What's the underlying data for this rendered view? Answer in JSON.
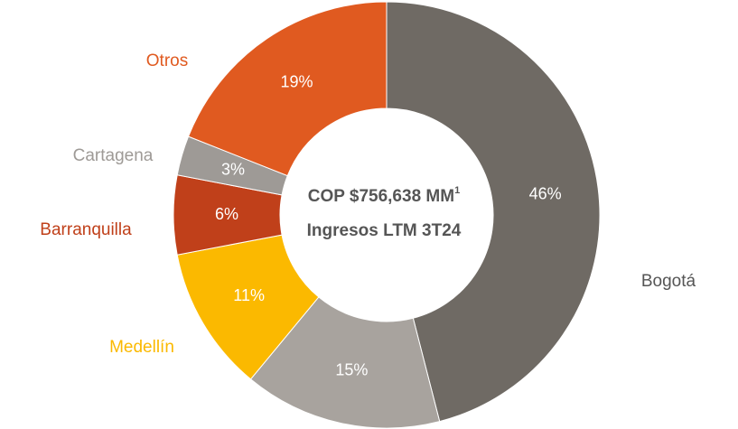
{
  "chart_data": {
    "type": "donut",
    "categories": [
      "Bogotá",
      null,
      "Medellín",
      "Barranquilla",
      "Cartagena",
      "Otros"
    ],
    "values": [
      46,
      15,
      11,
      6,
      3,
      19
    ],
    "value_labels": [
      "46%",
      "15%",
      "11%",
      "6%",
      "3%",
      "19%"
    ],
    "colors": [
      "#6f6a64",
      "#a8a39e",
      "#fbb900",
      "#c0401a",
      "#9e9a96",
      "#e05a20"
    ],
    "label_colors": [
      "#555555",
      "#a8a39e",
      "#fbb900",
      "#c0401a",
      "#9e9a96",
      "#e05a20"
    ],
    "center_text": [
      "COP $756,638 MM",
      "Ingresos LTM  3T24"
    ],
    "center_superscript": "1"
  }
}
